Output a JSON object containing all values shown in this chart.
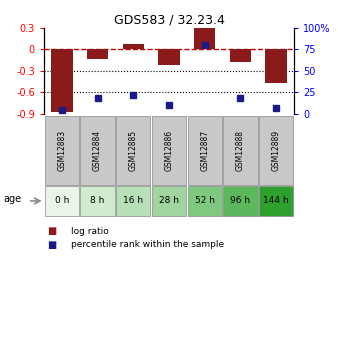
{
  "title": "GDS583 / 32.23.4",
  "samples": [
    "GSM12883",
    "GSM12884",
    "GSM12885",
    "GSM12886",
    "GSM12887",
    "GSM12888",
    "GSM12889"
  ],
  "ages": [
    "0 h",
    "8 h",
    "16 h",
    "28 h",
    "52 h",
    "96 h",
    "144 h"
  ],
  "age_colors": [
    "#e8f5e8",
    "#d0ecd0",
    "#b8e0b8",
    "#a0d4a0",
    "#7fc87f",
    "#5cb85c",
    "#2ea02e"
  ],
  "log_ratio": [
    -0.87,
    -0.13,
    0.07,
    -0.22,
    0.3,
    -0.18,
    -0.47
  ],
  "percentile_rank": [
    5,
    18,
    22,
    10,
    80,
    18,
    7
  ],
  "bar_color": "#8b1a1a",
  "dot_color": "#1a1a8b",
  "ylim_left": [
    -0.9,
    0.3
  ],
  "ylim_right": [
    0,
    100
  ],
  "yticks_left": [
    -0.9,
    -0.6,
    -0.3,
    0.0,
    0.3
  ],
  "ytick_labels_left": [
    "-0.9",
    "-0.6",
    "-0.3",
    "0",
    "0.3"
  ],
  "yticks_right": [
    0,
    25,
    50,
    75,
    100
  ],
  "ytick_labels_right": [
    "0",
    "25",
    "50",
    "75",
    "100%"
  ],
  "hline_zero_color": "#cc0000",
  "sample_box_color": "#c8c8c8",
  "legend_log_ratio": "log ratio",
  "legend_percentile": "percentile rank within the sample"
}
